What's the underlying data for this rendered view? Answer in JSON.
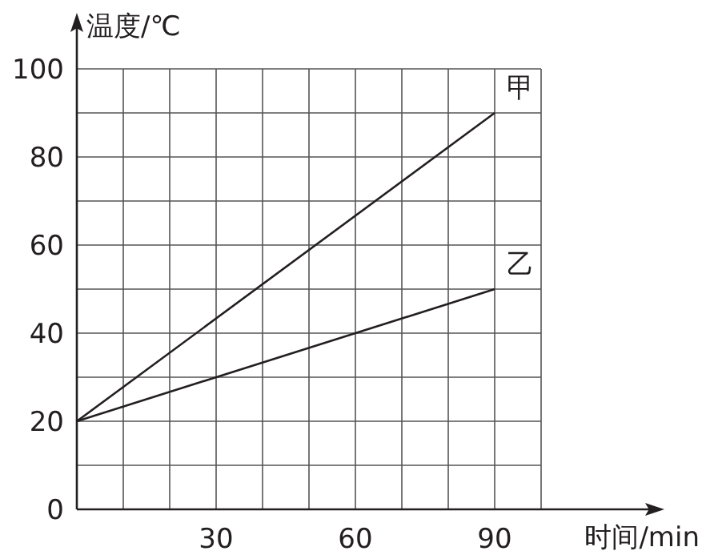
{
  "chart_data": {
    "type": "line",
    "xlabel": "时间/min",
    "ylabel": "温度/℃",
    "x": [
      0,
      90
    ],
    "series": [
      {
        "name": "甲",
        "color": "#231f20",
        "values": [
          20,
          90
        ]
      },
      {
        "name": "乙",
        "color": "#231f20",
        "values": [
          20,
          50
        ]
      }
    ],
    "xlim": [
      0,
      100
    ],
    "ylim": [
      0,
      100
    ],
    "xticks": [
      {
        "value": 0,
        "label": null
      },
      {
        "value": 10,
        "label": null
      },
      {
        "value": 20,
        "label": null
      },
      30,
      {
        "value": 40,
        "label": null
      },
      {
        "value": 50,
        "label": null
      },
      60,
      {
        "value": 70,
        "label": null
      },
      {
        "value": 80,
        "label": null
      },
      90,
      {
        "value": 100,
        "label": null
      }
    ],
    "yticks": [
      0,
      {
        "value": 10,
        "label": null
      },
      20,
      {
        "value": 30,
        "label": null
      },
      40,
      {
        "value": 50,
        "label": null
      },
      60,
      {
        "value": 70,
        "label": null
      },
      80,
      {
        "value": 90,
        "label": null
      },
      100
    ],
    "grid": true,
    "marker": "none",
    "line_style": "solid"
  }
}
